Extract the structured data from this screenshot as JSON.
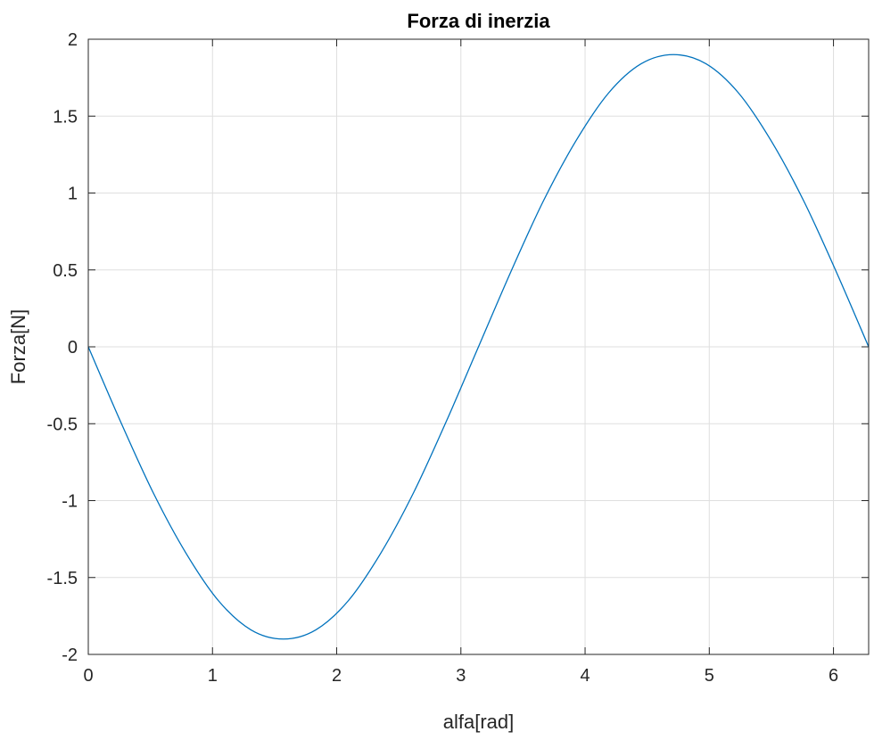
{
  "chart_data": {
    "type": "line",
    "title": "Forza di inerzia",
    "xlabel": "alfa[rad]",
    "ylabel": "Forza[N]",
    "xlim": [
      0,
      6.2832
    ],
    "ylim": [
      -2,
      2
    ],
    "xticks": [
      0,
      1,
      2,
      3,
      4,
      5,
      6
    ],
    "yticks": [
      2,
      1.5,
      1,
      0.5,
      0,
      -0.5,
      -1,
      -1.5,
      -2
    ],
    "xtick_labels": [
      "0",
      "1",
      "2",
      "3",
      "4",
      "5",
      "6"
    ],
    "ytick_labels": [
      "2",
      "1.5",
      "1",
      "0.5",
      "0",
      "-0.5",
      "-1",
      "-1.5",
      "-2"
    ],
    "grid": true,
    "line_color": "#0072BD",
    "series": [
      {
        "x": [
          0,
          0.2618,
          0.5236,
          0.7854,
          1.0472,
          1.309,
          1.5708,
          1.8326,
          2.0944,
          2.3562,
          2.618,
          2.8798,
          3.1416,
          3.4034,
          3.6652,
          3.927,
          4.1888,
          4.4506,
          4.7124,
          4.9742,
          5.236,
          5.4978,
          5.7596,
          6.0214,
          6.2832
        ],
        "y": [
          0,
          -0.49,
          -0.95,
          -1.34,
          -1.65,
          -1.84,
          -1.9,
          -1.84,
          -1.65,
          -1.34,
          -0.95,
          -0.49,
          0,
          0.49,
          0.95,
          1.34,
          1.65,
          1.84,
          1.9,
          1.84,
          1.65,
          1.34,
          0.95,
          0.49,
          0
        ]
      }
    ]
  }
}
